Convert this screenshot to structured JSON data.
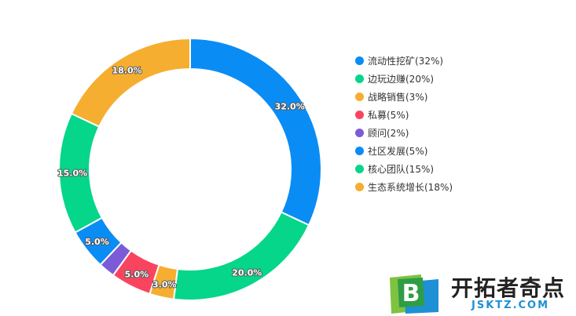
{
  "chart_data": {
    "type": "pie",
    "title": "",
    "categories": [
      "流动性挖矿",
      "边玩边赚",
      "战略销售",
      "私募",
      "顾问",
      "社区发展",
      "核心团队",
      "生态系统增长"
    ],
    "values": [
      32,
      20,
      3,
      5,
      2,
      5,
      15,
      18
    ],
    "data_labels": [
      "32.0%",
      "20.0%",
      "3.0%",
      "5.0%",
      "",
      "5.0%",
      "15.0%",
      "18.0%"
    ],
    "legend": [
      "流动性挖矿(32%)",
      "边玩边赚(20%)",
      "战略销售(3%)",
      "私募(5%)",
      "顾问(2%)",
      "社区发展(5%)",
      "核心团队(15%)",
      "生态系统增长(18%)"
    ],
    "colors": [
      "#0a8cf5",
      "#05d68a",
      "#f5ae2f",
      "#f9445f",
      "#7c5cd6",
      "#0a8cf5",
      "#05d68a",
      "#f5ae2f"
    ],
    "legend_position": "right",
    "donut": true
  },
  "watermark": {
    "logo_letter": "B",
    "name": "开拓者奇点",
    "domain": "JSKTZ.COM"
  }
}
